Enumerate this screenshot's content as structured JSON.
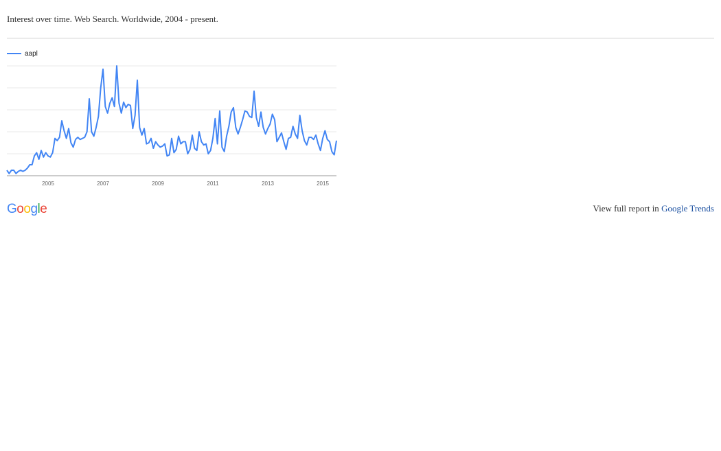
{
  "header": {
    "title": "Interest over time. Web Search. Worldwide, 2004 - present."
  },
  "footer": {
    "logo_text": "Google",
    "report_prefix": "View full report in ",
    "report_link": "Google Trends"
  },
  "colors": {
    "series": "#4285f4",
    "grid": "#e8e8e8",
    "axis": "#999999",
    "divider": "#cfcfcf",
    "link": "#1a4fa0"
  },
  "chart_data": {
    "type": "line",
    "title": "",
    "xlabel": "",
    "ylabel": "",
    "grid": true,
    "legend": "top-left",
    "x_ticks": [
      "2005",
      "2007",
      "2009",
      "2011",
      "2013",
      "2015"
    ],
    "ylim": [
      0,
      100
    ],
    "series": [
      {
        "name": "aapl",
        "color": "#4285f4",
        "points": [
          [
            "2004-01",
            5
          ],
          [
            "2004-02",
            2
          ],
          [
            "2004-03",
            5
          ],
          [
            "2004-04",
            5
          ],
          [
            "2004-05",
            2
          ],
          [
            "2004-06",
            4
          ],
          [
            "2004-07",
            5
          ],
          [
            "2004-08",
            4
          ],
          [
            "2004-09",
            5
          ],
          [
            "2004-10",
            7
          ],
          [
            "2004-11",
            10
          ],
          [
            "2004-12",
            10
          ],
          [
            "2005-01",
            18
          ],
          [
            "2005-02",
            21
          ],
          [
            "2005-03",
            15
          ],
          [
            "2005-04",
            23
          ],
          [
            "2005-05",
            17
          ],
          [
            "2005-06",
            21
          ],
          [
            "2005-07",
            18
          ],
          [
            "2005-08",
            17
          ],
          [
            "2005-09",
            21
          ],
          [
            "2005-10",
            34
          ],
          [
            "2005-11",
            32
          ],
          [
            "2005-12",
            35
          ],
          [
            "2006-01",
            50
          ],
          [
            "2006-02",
            41
          ],
          [
            "2006-03",
            34
          ],
          [
            "2006-04",
            43
          ],
          [
            "2006-05",
            30
          ],
          [
            "2006-06",
            26
          ],
          [
            "2006-07",
            33
          ],
          [
            "2006-08",
            35
          ],
          [
            "2006-09",
            33
          ],
          [
            "2006-10",
            34
          ],
          [
            "2006-11",
            35
          ],
          [
            "2006-12",
            40
          ],
          [
            "2007-01",
            70
          ],
          [
            "2007-02",
            40
          ],
          [
            "2007-03",
            36
          ],
          [
            "2007-04",
            44
          ],
          [
            "2007-05",
            54
          ],
          [
            "2007-06",
            80
          ],
          [
            "2007-07",
            97
          ],
          [
            "2007-08",
            63
          ],
          [
            "2007-09",
            57
          ],
          [
            "2007-10",
            66
          ],
          [
            "2007-11",
            71
          ],
          [
            "2007-12",
            63
          ],
          [
            "2008-01",
            100
          ],
          [
            "2008-02",
            66
          ],
          [
            "2008-03",
            57
          ],
          [
            "2008-04",
            67
          ],
          [
            "2008-05",
            62
          ],
          [
            "2008-06",
            65
          ],
          [
            "2008-07",
            64
          ],
          [
            "2008-08",
            43
          ],
          [
            "2008-09",
            55
          ],
          [
            "2008-10",
            87
          ],
          [
            "2008-11",
            44
          ],
          [
            "2008-12",
            37
          ],
          [
            "2009-01",
            43
          ],
          [
            "2009-02",
            29
          ],
          [
            "2009-03",
            30
          ],
          [
            "2009-04",
            34
          ],
          [
            "2009-05",
            25
          ],
          [
            "2009-06",
            31
          ],
          [
            "2009-07",
            28
          ],
          [
            "2009-08",
            26
          ],
          [
            "2009-09",
            27
          ],
          [
            "2009-10",
            29
          ],
          [
            "2009-11",
            18
          ],
          [
            "2009-12",
            19
          ],
          [
            "2010-01",
            34
          ],
          [
            "2010-02",
            21
          ],
          [
            "2010-03",
            24
          ],
          [
            "2010-04",
            36
          ],
          [
            "2010-05",
            29
          ],
          [
            "2010-06",
            31
          ],
          [
            "2010-07",
            31
          ],
          [
            "2010-08",
            20
          ],
          [
            "2010-09",
            24
          ],
          [
            "2010-10",
            37
          ],
          [
            "2010-11",
            25
          ],
          [
            "2010-12",
            23
          ],
          [
            "2011-01",
            40
          ],
          [
            "2011-02",
            31
          ],
          [
            "2011-03",
            28
          ],
          [
            "2011-04",
            29
          ],
          [
            "2011-05",
            20
          ],
          [
            "2011-06",
            23
          ],
          [
            "2011-07",
            34
          ],
          [
            "2011-08",
            52
          ],
          [
            "2011-09",
            29
          ],
          [
            "2011-10",
            59
          ],
          [
            "2011-11",
            26
          ],
          [
            "2011-12",
            22
          ],
          [
            "2012-01",
            36
          ],
          [
            "2012-02",
            45
          ],
          [
            "2012-03",
            58
          ],
          [
            "2012-04",
            62
          ],
          [
            "2012-05",
            44
          ],
          [
            "2012-06",
            38
          ],
          [
            "2012-07",
            44
          ],
          [
            "2012-08",
            51
          ],
          [
            "2012-09",
            59
          ],
          [
            "2012-10",
            58
          ],
          [
            "2012-11",
            54
          ],
          [
            "2012-12",
            53
          ],
          [
            "2013-01",
            77
          ],
          [
            "2013-02",
            53
          ],
          [
            "2013-03",
            45
          ],
          [
            "2013-04",
            58
          ],
          [
            "2013-05",
            44
          ],
          [
            "2013-06",
            38
          ],
          [
            "2013-07",
            43
          ],
          [
            "2013-08",
            47
          ],
          [
            "2013-09",
            56
          ],
          [
            "2013-10",
            51
          ],
          [
            "2013-11",
            31
          ],
          [
            "2013-12",
            35
          ],
          [
            "2014-01",
            39
          ],
          [
            "2014-02",
            31
          ],
          [
            "2014-03",
            24
          ],
          [
            "2014-04",
            34
          ],
          [
            "2014-05",
            35
          ],
          [
            "2014-06",
            45
          ],
          [
            "2014-07",
            38
          ],
          [
            "2014-08",
            34
          ],
          [
            "2014-09",
            55
          ],
          [
            "2014-10",
            41
          ],
          [
            "2014-11",
            32
          ],
          [
            "2014-12",
            28
          ],
          [
            "2015-01",
            35
          ],
          [
            "2015-02",
            35
          ],
          [
            "2015-03",
            33
          ],
          [
            "2015-04",
            37
          ],
          [
            "2015-05",
            29
          ],
          [
            "2015-06",
            23
          ],
          [
            "2015-07",
            34
          ],
          [
            "2015-08",
            41
          ],
          [
            "2015-09",
            33
          ],
          [
            "2015-10",
            31
          ],
          [
            "2015-11",
            22
          ],
          [
            "2015-12",
            19
          ],
          [
            "2016-01",
            32
          ]
        ]
      }
    ]
  }
}
